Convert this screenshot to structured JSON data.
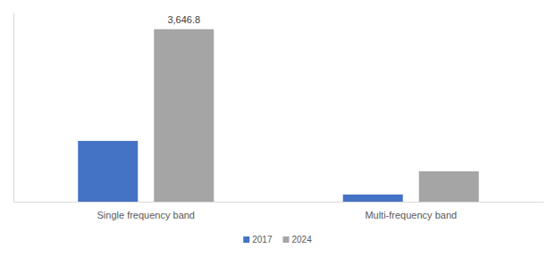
{
  "chart_data": {
    "type": "bar",
    "categories": [
      "Single frequency band",
      "Multi-frequency band"
    ],
    "series": [
      {
        "name": "2017",
        "color": "#4472c4",
        "values": [
          1285,
          151
        ],
        "value_labels": [
          null,
          null
        ]
      },
      {
        "name": "2024",
        "color": "#a5a5a5",
        "values": [
          3646.8,
          642
        ],
        "value_labels": [
          "3,646.8",
          null
        ]
      }
    ],
    "ylim": [
      0,
      4000
    ],
    "yticks": [],
    "grid": false,
    "legend": "bottom",
    "tick_labels": "x"
  }
}
